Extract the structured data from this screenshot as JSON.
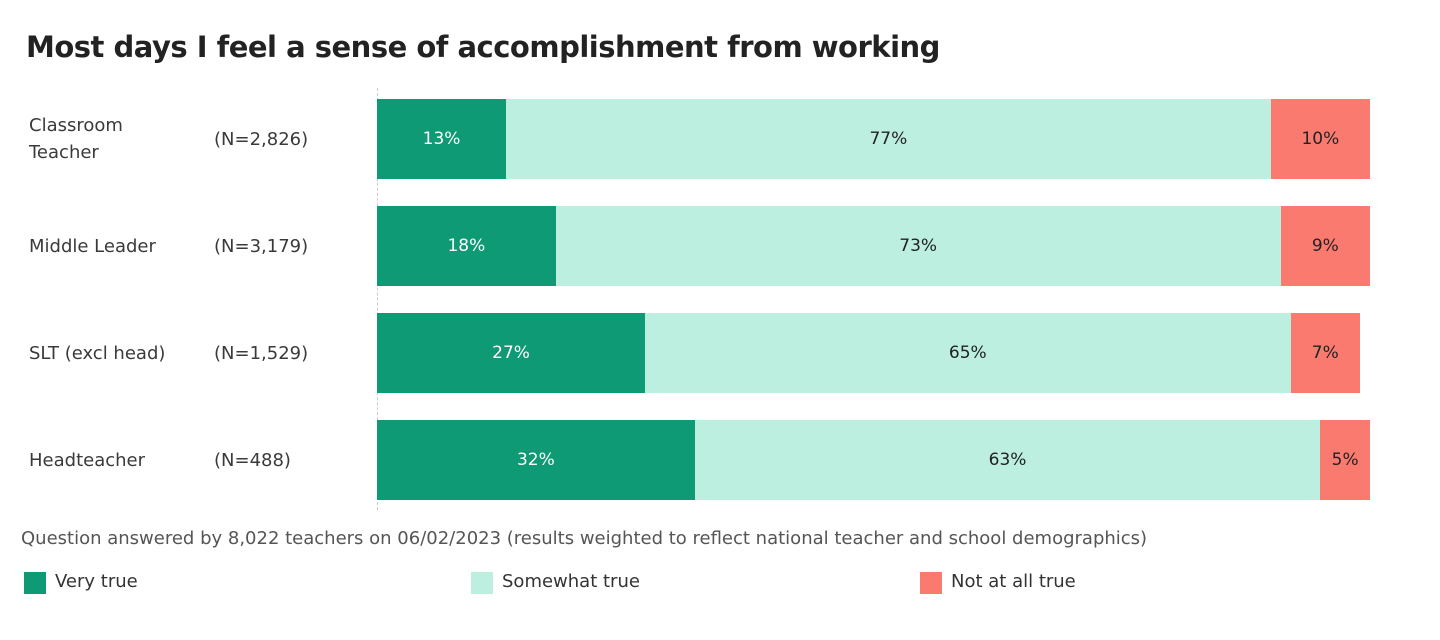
{
  "chart_data": {
    "type": "stacked_bar_horizontal",
    "title": "Most days I feel a sense of accomplishment from working",
    "categories": [
      "Classroom Teacher",
      "Middle Leader",
      "SLT (excl head)",
      "Headteacher"
    ],
    "sample_sizes": [
      "(N=2,826)",
      "(N=3,179)",
      "(N=1,529)",
      "(N=488)"
    ],
    "series": [
      {
        "name": "Very true",
        "color": "#0e9a74",
        "values": [
          13,
          18,
          27,
          32
        ],
        "value_labels": [
          "13%",
          "18%",
          "27%",
          "32%"
        ]
      },
      {
        "name": "Somewhat true",
        "color": "#bcefdf",
        "values": [
          77,
          73,
          65,
          63
        ],
        "value_labels": [
          "77%",
          "73%",
          "65%",
          "63%"
        ]
      },
      {
        "name": "Not at all true",
        "color": "#fb7a70",
        "values": [
          10,
          9,
          7,
          5
        ],
        "value_labels": [
          "10%",
          "9%",
          "7%",
          "5%"
        ]
      }
    ],
    "xlim": [
      0,
      100
    ],
    "note": "Question answered by 8,022 teachers on 06/02/2023 (results weighted to reflect national teacher and school demographics)"
  }
}
